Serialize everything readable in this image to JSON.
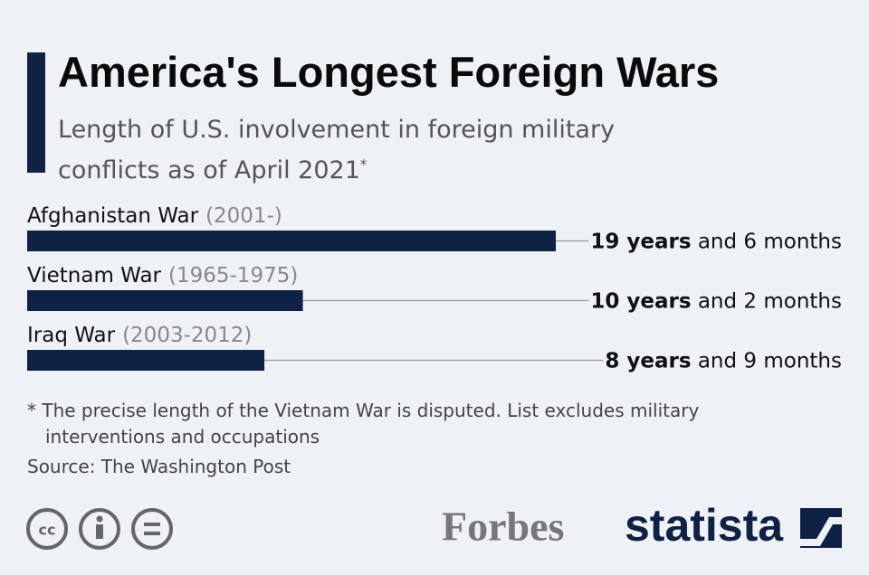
{
  "title": "America's Longest Foreign Wars",
  "subtitle": "Length of U.S. involvement in foreign military conflicts as of April 2021",
  "subtitle_mark": "*",
  "chart_data": {
    "type": "bar",
    "orientation": "horizontal",
    "categories": [
      "Afghanistan War",
      "Vietnam War",
      "Iraq War"
    ],
    "periods": [
      "(2001-)",
      "(1965-1975)",
      "(2003-2012)"
    ],
    "values": [
      19.5,
      10.17,
      8.75
    ],
    "value_labels": [
      "19 years and 6 months",
      "10 years and 2 months",
      "8 years and 9 months"
    ],
    "color": "#0f2144"
  },
  "note": "* The precise length of the Vietnam War is disputed. List excludes military interventions and occupations",
  "source": "Source: The Washington Post",
  "logos": [
    "Forbes",
    "statista"
  ]
}
